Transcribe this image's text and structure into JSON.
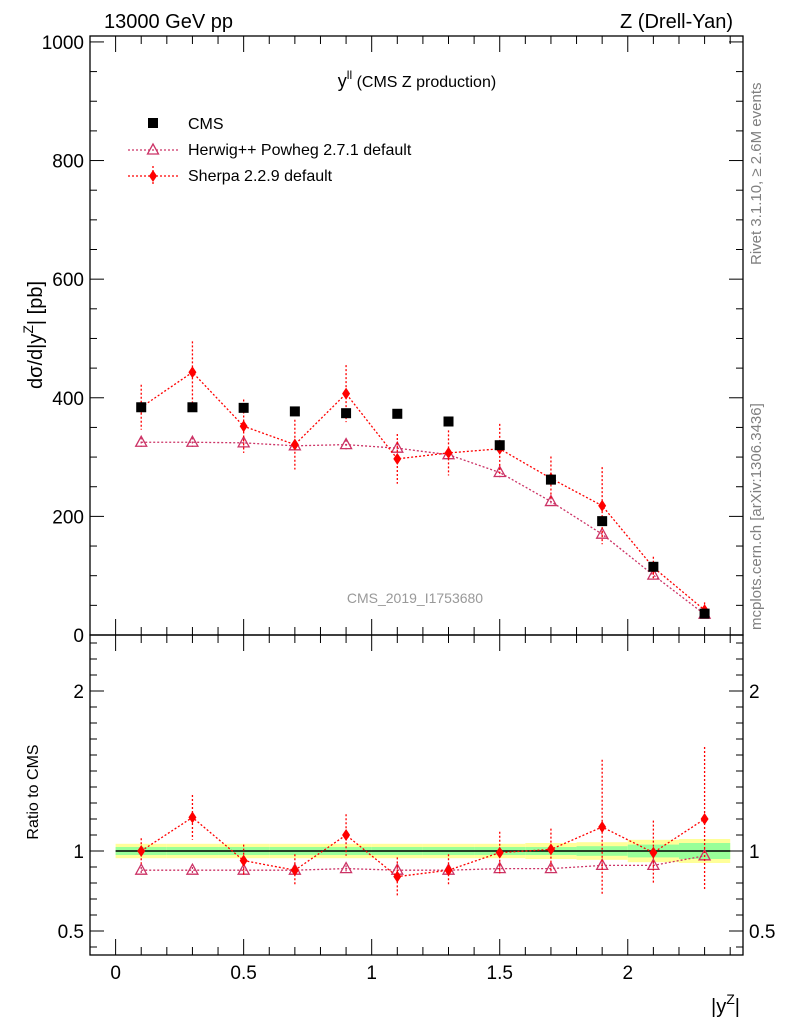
{
  "header": {
    "left": "13000 GeV pp",
    "right": "Z (Drell-Yan)"
  },
  "side": {
    "rivet": "Rivet 3.1.10, ≥ 2.6M events",
    "mcplots": "mcplots.cern.ch [arXiv:1306.3436]"
  },
  "chart_data": [
    {
      "type": "scatter",
      "title_main": "y",
      "title_sup": "ll",
      "title_rest": " (CMS Z production)",
      "watermark": "CMS_2019_I1753680",
      "ylabel_main": "dσ/d|y",
      "ylabel_sup": "Z",
      "ylabel_end": "| [pb]",
      "xlim": [
        -0.1,
        2.45
      ],
      "ylim": [
        0,
        1010
      ],
      "yticks": [
        0,
        200,
        400,
        600,
        800,
        1000
      ],
      "legend_position": "top-left",
      "x": [
        0.1,
        0.3,
        0.5,
        0.7,
        0.9,
        1.1,
        1.3,
        1.5,
        1.7,
        1.9,
        2.1,
        2.3
      ],
      "series": [
        {
          "name": "CMS",
          "color": "#000000",
          "marker": "square",
          "values": [
            384,
            384,
            383,
            377,
            374,
            373,
            360,
            320,
            262,
            192,
            115,
            36
          ]
        },
        {
          "name": "Herwig++ Powheg 2.7.1 default",
          "color": "#cc3366",
          "marker": "open-triangle",
          "values": [
            325,
            325,
            324,
            319,
            321,
            315,
            304,
            274,
            225,
            170,
            101,
            35
          ],
          "err": [
            8,
            8,
            8,
            8,
            8,
            8,
            8,
            8,
            7,
            6,
            5,
            3
          ]
        },
        {
          "name": "Sherpa 2.2.9 default",
          "color": "#ff0000",
          "marker": "diamond",
          "values": [
            384,
            443,
            352,
            321,
            407,
            297,
            307,
            314,
            264,
            218,
            114,
            42
          ],
          "err": [
            38,
            52,
            45,
            42,
            48,
            42,
            38,
            42,
            37,
            65,
            18,
            13
          ]
        }
      ]
    },
    {
      "type": "scatter",
      "ylabel": "Ratio to CMS",
      "xlabel_main": "|y",
      "xlabel_sup": "Z",
      "xlabel_end": "|",
      "xlim": [
        -0.1,
        2.45
      ],
      "ylim": [
        0.35,
        2.35
      ],
      "yticks": [
        0.5,
        1,
        2
      ],
      "ytick_labels": [
        "0.5",
        "1",
        "2"
      ],
      "xticks": [
        0,
        0.5,
        1,
        1.5,
        2
      ],
      "xtick_labels": [
        "0",
        "0.5",
        "1",
        "1.5",
        "2"
      ],
      "x": [
        0.1,
        0.3,
        0.5,
        0.7,
        0.9,
        1.1,
        1.3,
        1.5,
        1.7,
        1.9,
        2.1,
        2.3
      ],
      "bands": {
        "inner_color": "#99ff99",
        "outer_color": "#ffff99",
        "inner": [
          0.025,
          0.025,
          0.025,
          0.025,
          0.025,
          0.025,
          0.025,
          0.025,
          0.025,
          0.03,
          0.04,
          0.05
        ],
        "outer": [
          0.045,
          0.045,
          0.045,
          0.045,
          0.045,
          0.045,
          0.045,
          0.045,
          0.05,
          0.055,
          0.07,
          0.075
        ]
      },
      "series": [
        {
          "name": "Herwig++ Powheg 2.7.1 default",
          "color": "#cc3366",
          "marker": "open-triangle",
          "values": [
            0.88,
            0.88,
            0.88,
            0.88,
            0.89,
            0.88,
            0.88,
            0.89,
            0.89,
            0.91,
            0.91,
            0.97
          ],
          "err": [
            0.02,
            0.02,
            0.02,
            0.02,
            0.02,
            0.02,
            0.02,
            0.02,
            0.02,
            0.02,
            0.02,
            0.03
          ]
        },
        {
          "name": "Sherpa 2.2.9 default",
          "color": "#ff0000",
          "marker": "diamond",
          "values": [
            1.0,
            1.21,
            0.94,
            0.88,
            1.1,
            0.84,
            0.88,
            0.99,
            1.01,
            1.15,
            0.99,
            1.2
          ],
          "err": [
            0.08,
            0.14,
            0.1,
            0.1,
            0.13,
            0.12,
            0.1,
            0.13,
            0.13,
            0.42,
            0.2,
            0.45
          ]
        }
      ]
    }
  ]
}
